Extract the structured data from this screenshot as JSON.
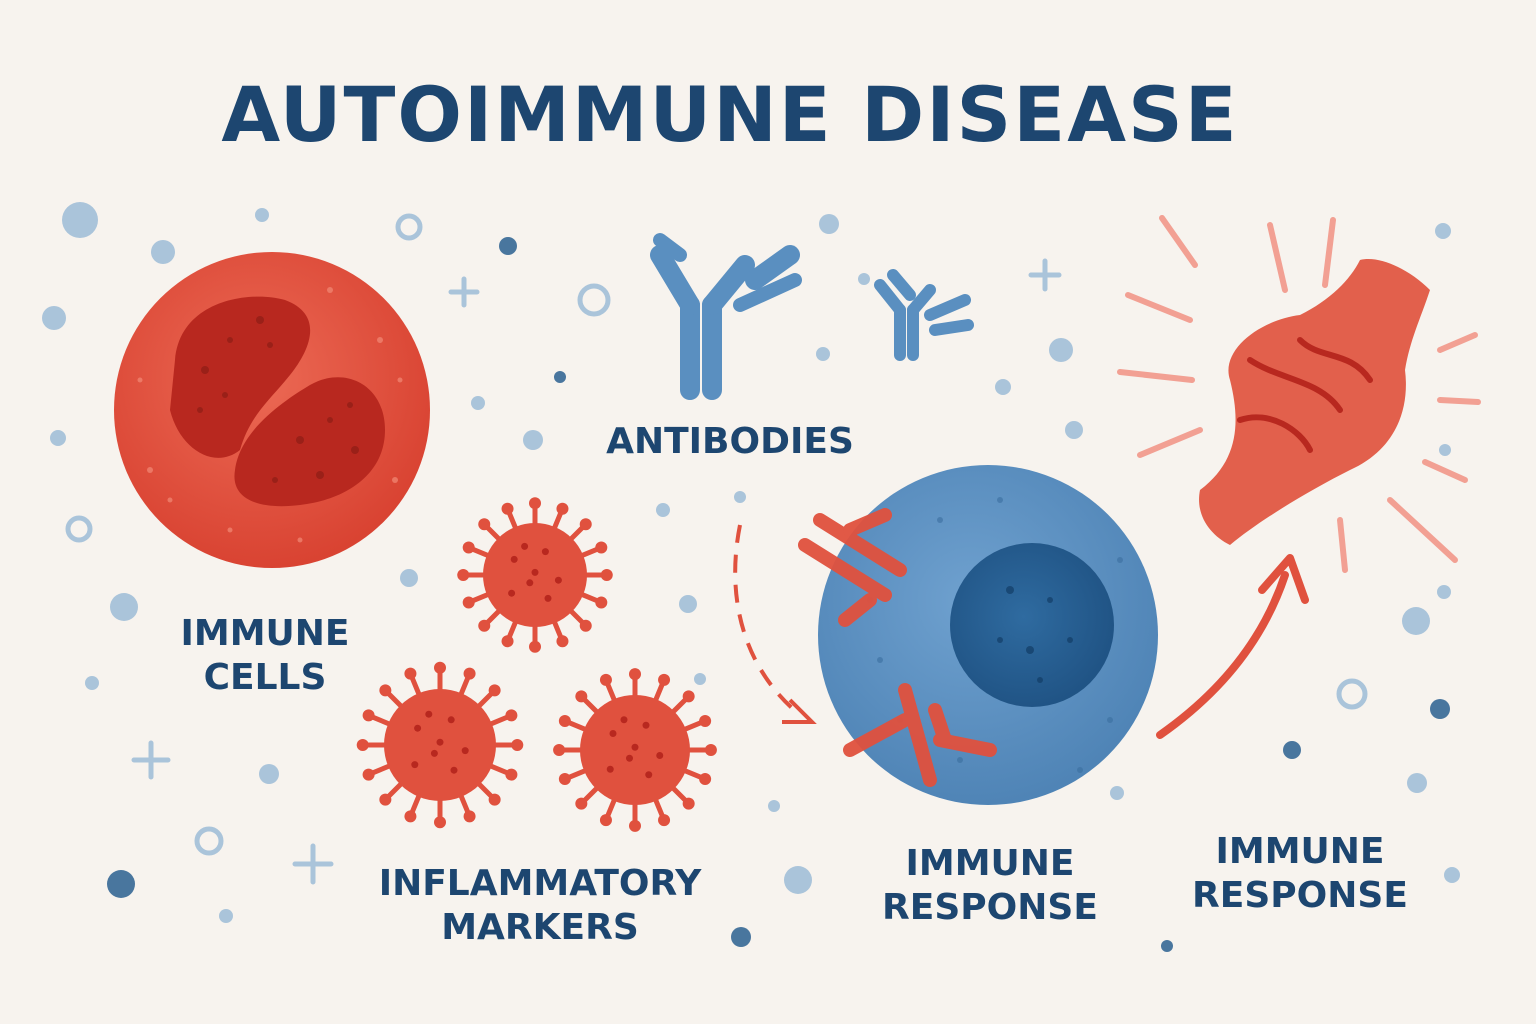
{
  "title": "AUTOIMMUNE DISEASE",
  "labels": {
    "immune_cells": [
      "IMMUNE",
      "CELLS"
    ],
    "antibodies": "ANTIBODIES",
    "inflammatory_markers": [
      "INFLAMMATORY",
      "MARKERS"
    ],
    "immune_response_cell": [
      "IMMUNE",
      "RESPONSE"
    ],
    "immune_response_tissue": [
      "IMMUNE",
      "RESPONSE"
    ]
  },
  "colors": {
    "background": "#f7f3ee",
    "text": "#1d4670",
    "red": "#e0513e",
    "dark_red": "#b8281f",
    "blue": "#5a8fc0",
    "dark_blue": "#2a5f8f",
    "light_dot": "#aac4da"
  }
}
